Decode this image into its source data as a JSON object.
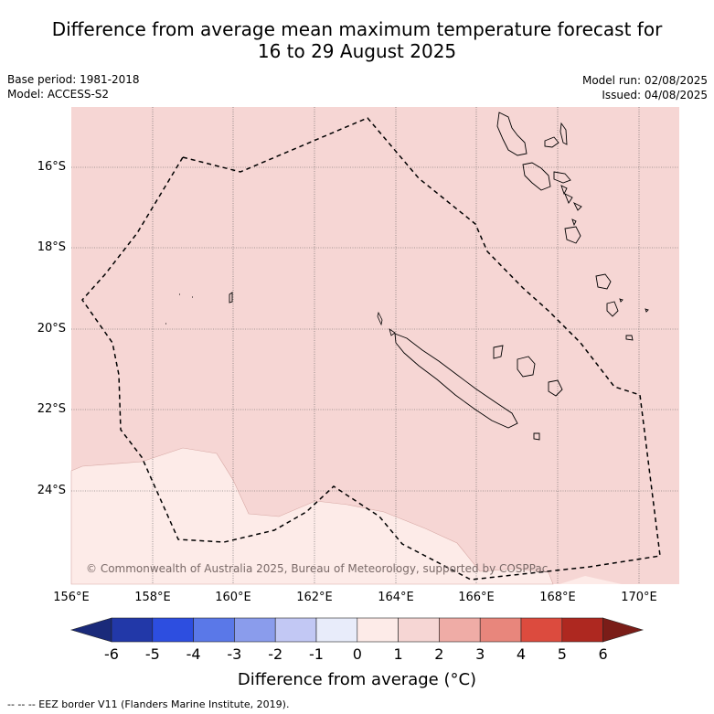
{
  "title_line1": "Difference from average mean maximum temperature forecast for",
  "title_line2": "16 to 29 August 2025",
  "base_period": "Base period: 1981-2018",
  "model": "Model: ACCESS-S2",
  "model_run": "Model run: 02/08/2025",
  "issued": "Issued: 04/08/2025",
  "lat_ticks": [
    "16°S",
    "18°S",
    "20°S",
    "22°S",
    "24°S"
  ],
  "lon_ticks": [
    "156°E",
    "158°E",
    "160°E",
    "162°E",
    "164°E",
    "166°E",
    "168°E",
    "170°E"
  ],
  "copyright": "© Commonwealth of Australia 2025, Bureau of Meteorology, supported by COSPPac",
  "colorbar": {
    "ticks": [
      "-6",
      "-5",
      "-4",
      "-3",
      "-2",
      "-1",
      "0",
      "1",
      "2",
      "3",
      "4",
      "5",
      "6"
    ],
    "label": "Difference from average (°C)",
    "colors": [
      "#1a2a7a",
      "#2238a8",
      "#2d4ee0",
      "#5a78e8",
      "#8a9cec",
      "#c2c8f4",
      "#e8ecfa",
      "#fdebe8",
      "#f6d6d4",
      "#efaca6",
      "#e8867c",
      "#dc4b3e",
      "#ae2820",
      "#7a1d18"
    ]
  },
  "footer": "--  --  -- EEZ border V11 (Flanders Marine Institute, 2019)."
}
